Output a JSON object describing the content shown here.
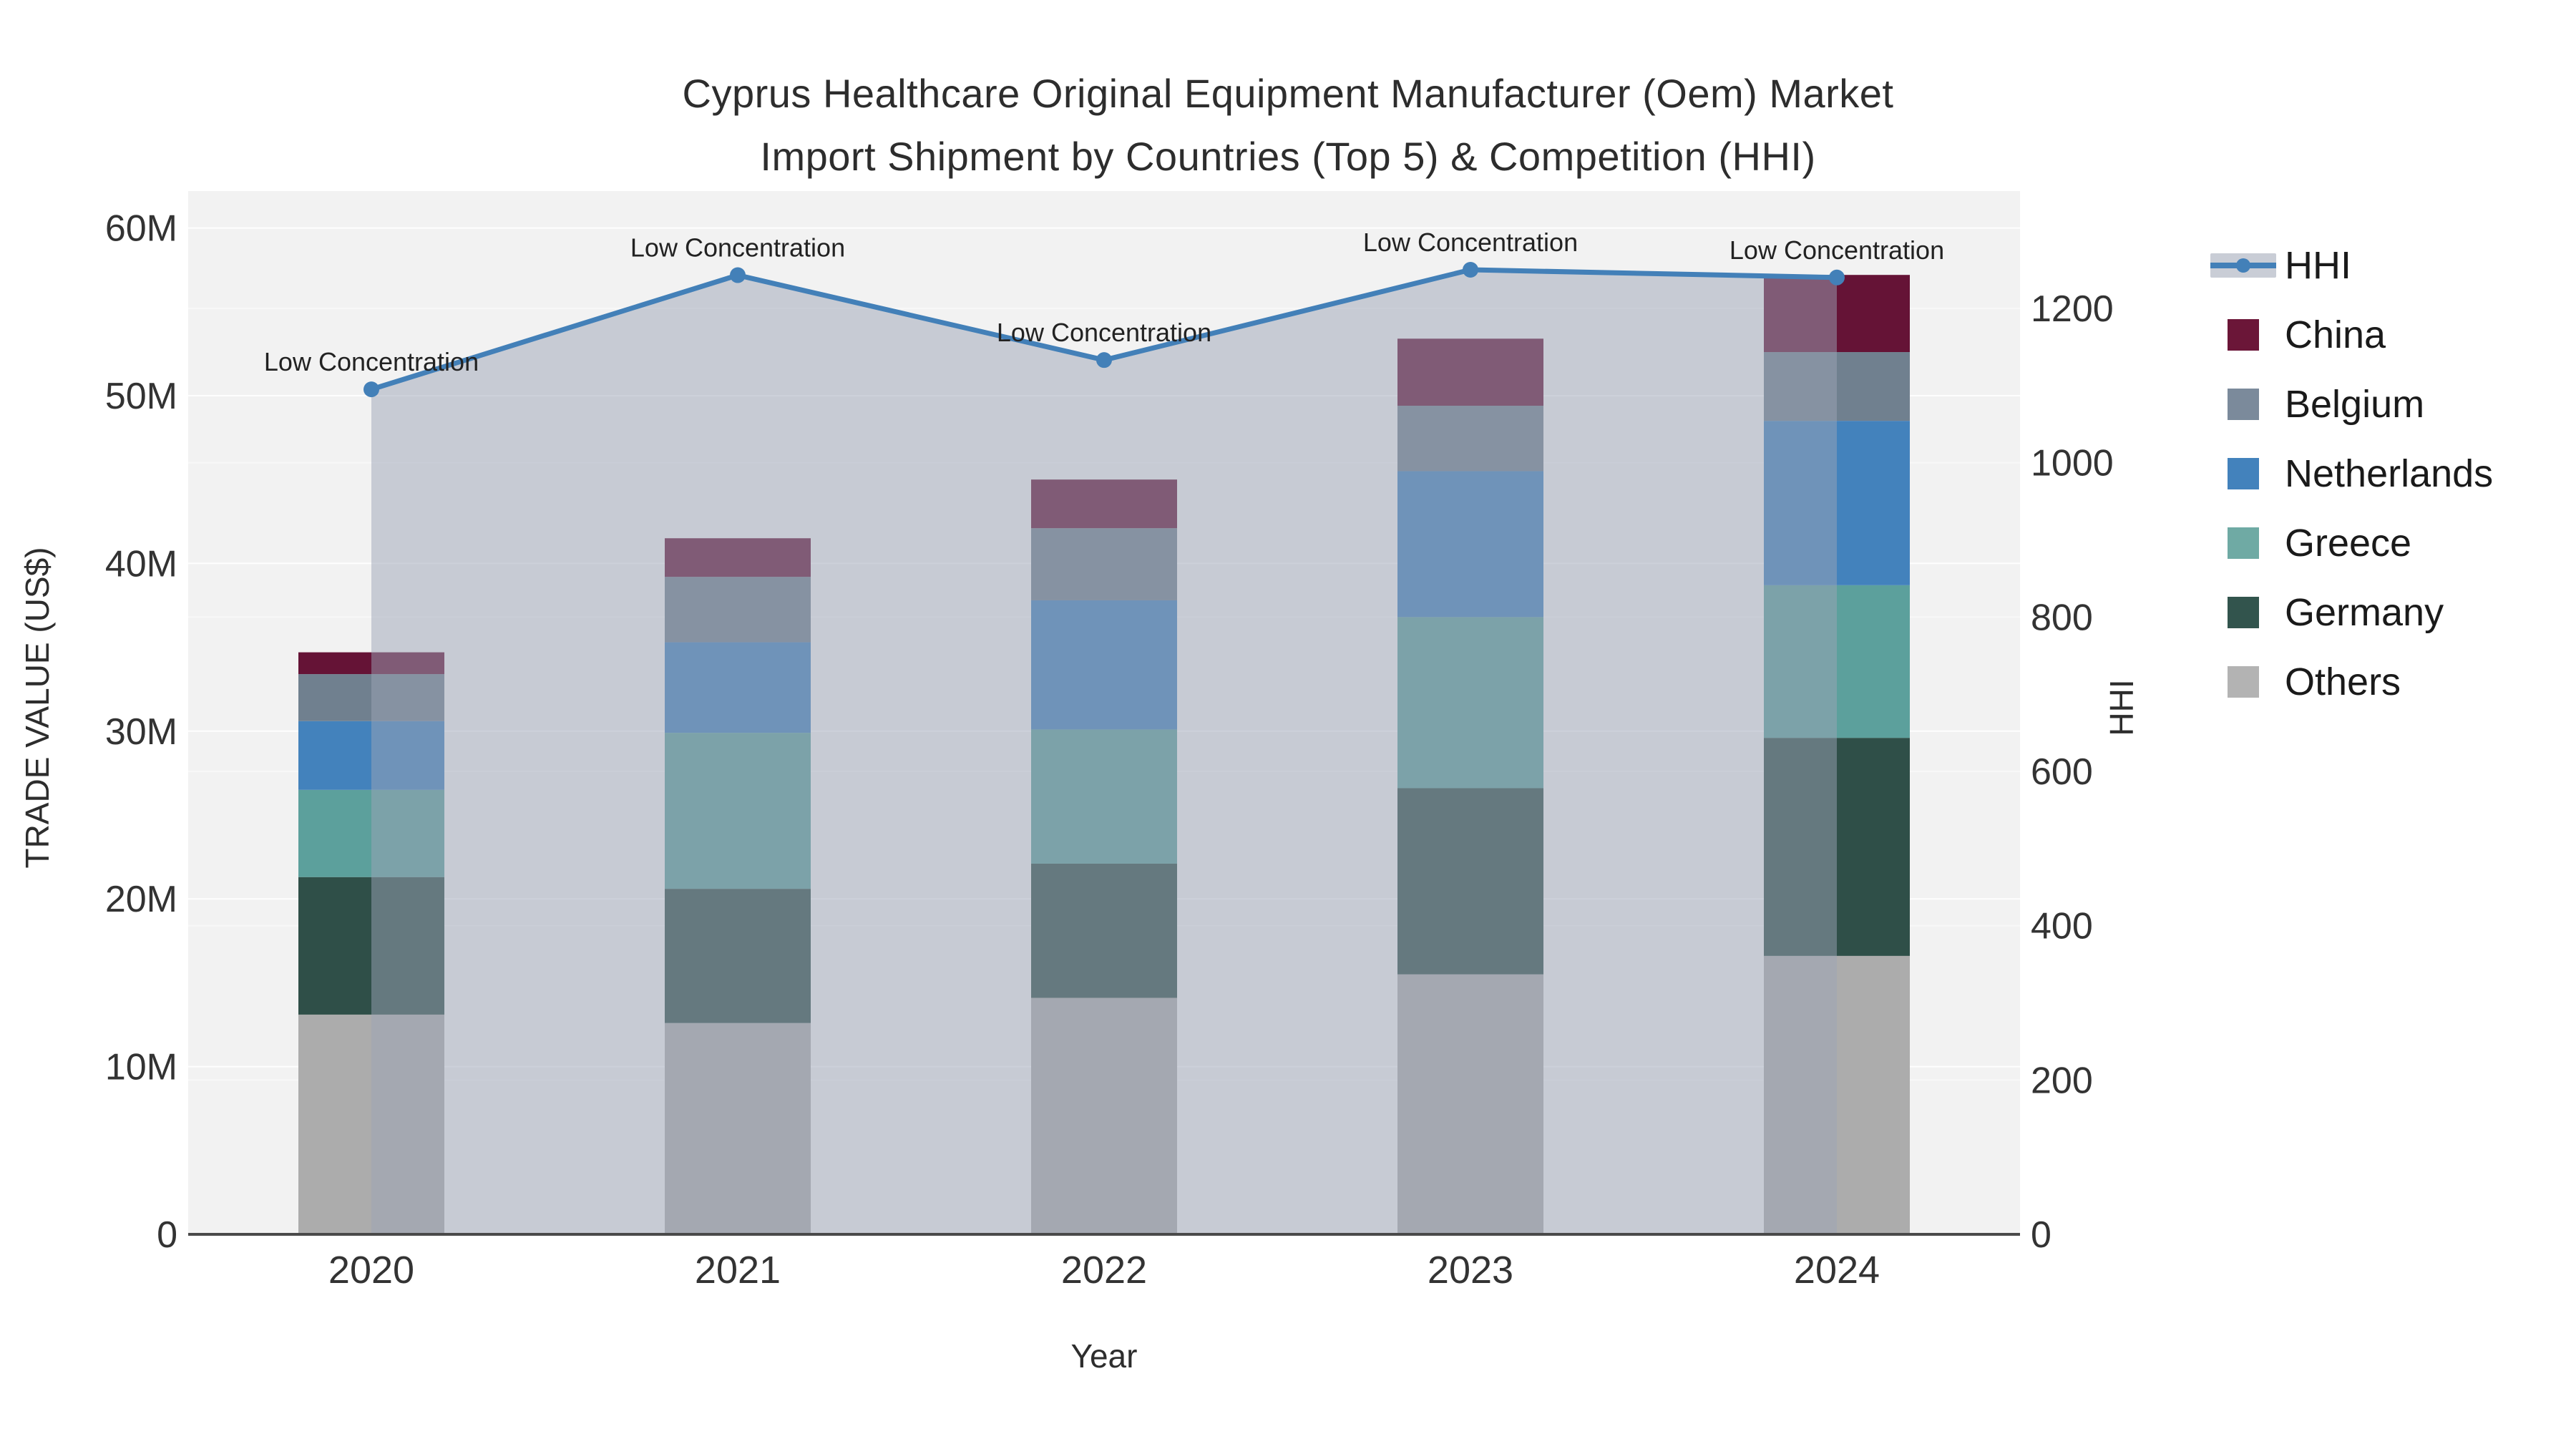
{
  "title": {
    "line1": "Cyprus Healthcare Original Equipment Manufacturer (Oem) Market",
    "line2": "Import Shipment by Countries (Top 5) & Competition (HHI)"
  },
  "colors": {
    "plot_background": "#f2f2f2",
    "figure_background": "#ffffff",
    "grid_left": "rgba(255,255,255,0.9)",
    "grid_right": "rgba(255,255,255,0.45)",
    "axis_line": "#4a4a4a",
    "tick_text": "#333333",
    "annotation_text": "#222222",
    "hhi_line": "#4380B8",
    "hhi_area_fill": "rgba(156,164,182,0.5)",
    "hhi_legend_band": "#c9cdd6"
  },
  "chart_data": {
    "type": "bar+line",
    "bar_mode": "stacked",
    "unit": "US$ millions",
    "x": {
      "title": "Year",
      "categories": [
        "2020",
        "2021",
        "2022",
        "2023",
        "2024"
      ]
    },
    "y_left": {
      "title": "TRADE VALUE (US$)",
      "tick_labels": [
        "0",
        "10M",
        "20M",
        "30M",
        "40M",
        "50M",
        "60M"
      ],
      "tick_values_m": [
        0,
        10,
        20,
        30,
        40,
        50,
        60
      ],
      "range_m": [
        0,
        62.2
      ],
      "grid": true
    },
    "y_right": {
      "title": "HHI",
      "tick_labels": [
        "0",
        "200",
        "400",
        "600",
        "800",
        "1000",
        "1200"
      ],
      "tick_values": [
        0,
        200,
        400,
        600,
        800,
        1000,
        1200
      ],
      "range": [
        0,
        1352
      ],
      "grid": true
    },
    "series": [
      {
        "name": "Others",
        "color": "#ACACAC",
        "values_m": [
          13.1,
          12.6,
          14.1,
          15.5,
          16.6
        ]
      },
      {
        "name": "Germany",
        "color": "#2F4F48",
        "values_m": [
          8.2,
          8.0,
          8.0,
          11.1,
          13.0
        ]
      },
      {
        "name": "Greece",
        "color": "#5CA09C",
        "values_m": [
          5.2,
          9.3,
          8.0,
          10.2,
          9.1
        ]
      },
      {
        "name": "Netherlands",
        "color": "#4382BC",
        "values_m": [
          4.1,
          5.4,
          7.7,
          8.7,
          9.8
        ]
      },
      {
        "name": "Belgium",
        "color": "#70808F",
        "values_m": [
          2.8,
          3.9,
          4.3,
          3.9,
          4.1
        ]
      },
      {
        "name": "China",
        "color": "#651336",
        "values_m": [
          1.3,
          2.3,
          2.9,
          4.0,
          4.6
        ]
      }
    ],
    "stack_totals_m": [
      34.7,
      41.5,
      45.0,
      53.4,
      57.2
    ],
    "hhi": {
      "name": "HHI",
      "axis": "right",
      "values": [
        1095,
        1243,
        1133,
        1250,
        1240
      ],
      "annotations": [
        "Low Concentration",
        "Low Concentration",
        "Low Concentration",
        "Low Concentration",
        "Low Concentration"
      ]
    },
    "legend_position": "right"
  },
  "legend": {
    "items": [
      {
        "label": "HHI",
        "type": "line",
        "color": "#4380B8"
      },
      {
        "label": "China",
        "type": "square",
        "color": "#6B1638"
      },
      {
        "label": "Belgium",
        "type": "square",
        "color": "#7B8A9B"
      },
      {
        "label": "Netherlands",
        "type": "square",
        "color": "#4382BC"
      },
      {
        "label": "Greece",
        "type": "square",
        "color": "#6FAAA4"
      },
      {
        "label": "Germany",
        "type": "square",
        "color": "#32544D"
      },
      {
        "label": "Others",
        "type": "square",
        "color": "#B3B3B3"
      }
    ]
  }
}
